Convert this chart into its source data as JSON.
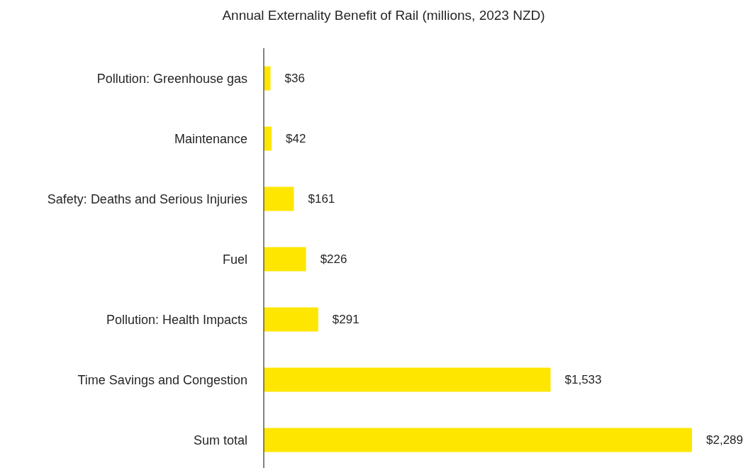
{
  "chart_data": {
    "type": "bar",
    "orientation": "horizontal",
    "title": "Annual Externality Benefit of Rail (millions, 2023 NZD)",
    "categories": [
      "Pollution: Greenhouse gas",
      "Maintenance",
      "Safety: Deaths and Serious Injuries",
      "Fuel",
      "Pollution: Health Impacts",
      "Time Savings and Congestion",
      "Sum total"
    ],
    "values": [
      36,
      42,
      161,
      226,
      291,
      1533,
      2289
    ],
    "value_labels": [
      "$36",
      "$42",
      "$161",
      "$226",
      "$291",
      "$1,533",
      "$2,289"
    ],
    "color": "#ffe600"
  }
}
